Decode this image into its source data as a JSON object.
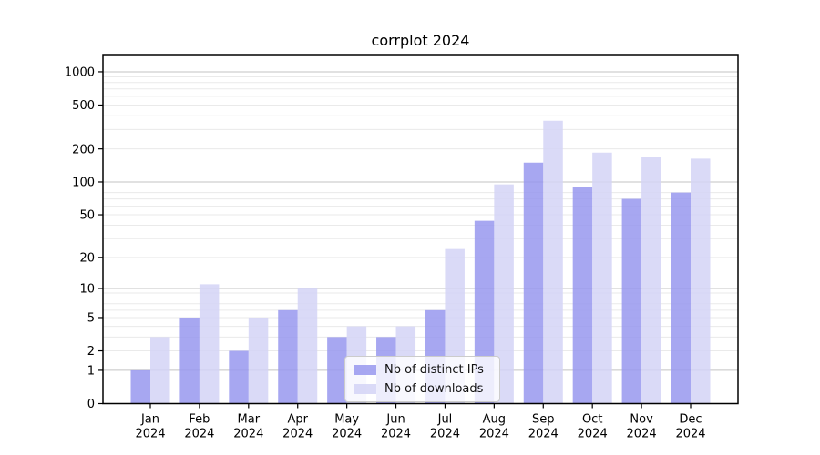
{
  "title": "corrplot 2024",
  "chart_data": {
    "type": "bar",
    "title": "corrplot 2024",
    "xlabel": "",
    "ylabel": "",
    "y_scale": "log(1+x)",
    "ylim": [
      0,
      1430
    ],
    "yticks": [
      0,
      1,
      2,
      5,
      10,
      20,
      50,
      100,
      200,
      500,
      1000
    ],
    "grid": "horizontal major and minor gridlines",
    "legend_position": "inside axes, lower center",
    "categories": [
      "Jan 2024",
      "Feb 2024",
      "Mar 2024",
      "Apr 2024",
      "May 2024",
      "Jun 2024",
      "Jul 2024",
      "Aug 2024",
      "Sep 2024",
      "Oct 2024",
      "Nov 2024",
      "Dec 2024"
    ],
    "series": [
      {
        "name": "Nb of distinct IPs",
        "color": "#9898ee",
        "values": [
          1,
          5,
          2,
          6,
          3,
          3,
          6,
          44,
          150,
          90,
          70,
          80
        ]
      },
      {
        "name": "Nb of downloads",
        "color": "#d3d3f6",
        "values": [
          3,
          11,
          5,
          10,
          4,
          4,
          24,
          95,
          360,
          185,
          168,
          163
        ]
      }
    ]
  },
  "colors": {
    "grid_major": "#c3c3c3",
    "grid_minor": "#eaeaea",
    "axis": "#000000",
    "tick_label": "#000000"
  }
}
